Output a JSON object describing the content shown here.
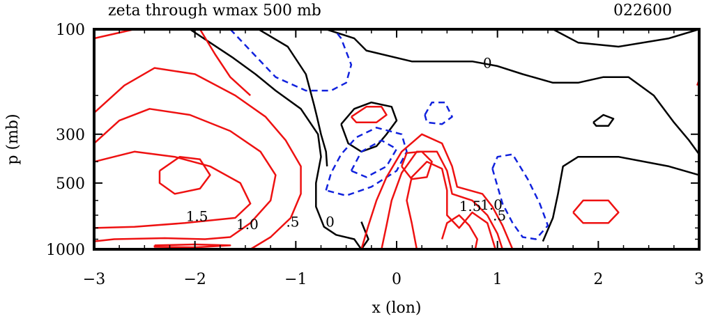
{
  "chart_data": {
    "type": "contour",
    "title": "zeta through wmax 500 mb",
    "timestamp": "022600",
    "xlabel": "x (lon)",
    "ylabel": "p (mb)",
    "xlim": [
      -3,
      3
    ],
    "ylim": [
      1000,
      100
    ],
    "y_scale": "log",
    "x_ticks": [
      "−3",
      "−2",
      "−1",
      "0",
      "1",
      "2",
      "3"
    ],
    "y_ticks": [
      "100",
      "300",
      "500",
      "1000"
    ],
    "grid": false,
    "colors": {
      "positive": "#ee1111",
      "negative": "#1122dd",
      "zero": "#000000"
    },
    "contour_labels": [
      {
        "text": "0",
        "x": 0.9,
        "p": 150
      },
      {
        "text": "1.5",
        "x": -1.98,
        "p": 745
      },
      {
        "text": "1.0",
        "x": -1.48,
        "p": 810
      },
      {
        "text": ".5",
        "x": -1.03,
        "p": 790
      },
      {
        "text": "0",
        "x": -0.66,
        "p": 790
      },
      {
        "text": "1.5",
        "x": 0.73,
        "p": 670
      },
      {
        "text": "1.0",
        "x": 0.94,
        "p": 660
      },
      {
        "text": ".5",
        "x": 1.02,
        "p": 740
      }
    ],
    "contours": [
      {
        "name": "zero-contour-left",
        "color": "zero",
        "points": [
          [
            -2.05,
            100
          ],
          [
            -1.85,
            115
          ],
          [
            -1.62,
            135
          ],
          [
            -1.4,
            160
          ],
          [
            -1.2,
            190
          ],
          [
            -0.95,
            230
          ],
          [
            -0.78,
            300
          ],
          [
            -0.75,
            380
          ],
          [
            -0.8,
            500
          ],
          [
            -0.8,
            640
          ],
          [
            -0.72,
            790
          ],
          [
            -0.6,
            860
          ],
          [
            -0.42,
            900
          ],
          [
            -0.35,
            1000
          ]
        ]
      },
      {
        "name": "zero-contour-top",
        "color": "zero",
        "points": [
          [
            -1.37,
            100
          ],
          [
            -1.08,
            120
          ],
          [
            -0.9,
            160
          ],
          [
            -0.82,
            220
          ],
          [
            -0.79,
            250
          ],
          [
            -0.75,
            300
          ],
          [
            -0.7,
            360
          ],
          [
            -0.69,
            420
          ]
        ]
      },
      {
        "name": "zero-contour-upper",
        "color": "zero",
        "points": [
          [
            -0.7,
            100
          ],
          [
            -0.42,
            110
          ],
          [
            -0.3,
            125
          ],
          [
            0.15,
            140
          ],
          [
            0.75,
            140
          ],
          [
            1.0,
            147
          ],
          [
            1.25,
            160
          ],
          [
            1.55,
            175
          ],
          [
            1.8,
            175
          ],
          [
            2.05,
            165
          ],
          [
            2.3,
            165
          ],
          [
            2.55,
            200
          ],
          [
            2.75,
            265
          ],
          [
            2.9,
            320
          ],
          [
            3.0,
            370
          ]
        ]
      },
      {
        "name": "zero-contour-top-right",
        "color": "zero",
        "points": [
          [
            1.55,
            100
          ],
          [
            1.8,
            115
          ],
          [
            2.2,
            120
          ],
          [
            2.7,
            110
          ],
          [
            3.0,
            100
          ]
        ]
      },
      {
        "name": "zero-contour-small-right",
        "color": "zero",
        "points": [
          [
            1.95,
            265
          ],
          [
            2.05,
            245
          ],
          [
            2.15,
            255
          ],
          [
            2.1,
            275
          ],
          [
            1.98,
            275
          ],
          [
            1.95,
            265
          ]
        ]
      },
      {
        "name": "zero-contour-center",
        "color": "zero",
        "points": [
          [
            -0.55,
            270
          ],
          [
            -0.42,
            230
          ],
          [
            -0.25,
            215
          ],
          [
            -0.05,
            225
          ],
          [
            0.0,
            260
          ],
          [
            -0.1,
            300
          ],
          [
            -0.2,
            340
          ],
          [
            -0.35,
            360
          ],
          [
            -0.48,
            330
          ],
          [
            -0.55,
            270
          ]
        ]
      },
      {
        "name": "zero-contour-lower-mid",
        "color": "zero",
        "points": [
          [
            -0.35,
            750
          ],
          [
            -0.28,
            900
          ],
          [
            -0.35,
            1000
          ]
        ]
      },
      {
        "name": "zero-contour-right",
        "color": "zero",
        "points": [
          [
            1.45,
            920
          ],
          [
            1.55,
            720
          ],
          [
            1.6,
            560
          ],
          [
            1.65,
            420
          ],
          [
            1.8,
            380
          ],
          [
            2.2,
            380
          ],
          [
            2.7,
            420
          ],
          [
            3.0,
            460
          ]
        ]
      },
      {
        "name": "neg-dashed-top",
        "color": "negative",
        "points": [
          [
            -1.65,
            100
          ],
          [
            -1.45,
            125
          ],
          [
            -1.2,
            165
          ],
          [
            -0.9,
            190
          ],
          [
            -0.65,
            190
          ],
          [
            -0.5,
            175
          ],
          [
            -0.45,
            145
          ],
          [
            -0.55,
            110
          ],
          [
            -0.62,
            100
          ]
        ]
      },
      {
        "name": "neg-dashed-center",
        "color": "negative",
        "points": [
          [
            -0.7,
            540
          ],
          [
            -0.65,
            450
          ],
          [
            -0.55,
            370
          ],
          [
            -0.4,
            310
          ],
          [
            -0.2,
            280
          ],
          [
            0.05,
            300
          ],
          [
            0.1,
            360
          ],
          [
            0.0,
            440
          ],
          [
            -0.25,
            520
          ],
          [
            -0.5,
            570
          ],
          [
            -0.7,
            540
          ]
        ]
      },
      {
        "name": "neg-dashed-center-inner",
        "color": "negative",
        "points": [
          [
            -0.45,
            440
          ],
          [
            -0.35,
            360
          ],
          [
            -0.15,
            320
          ],
          [
            0.0,
            350
          ],
          [
            -0.1,
            420
          ],
          [
            -0.3,
            470
          ],
          [
            -0.45,
            440
          ]
        ]
      },
      {
        "name": "neg-dashed-upper-right",
        "color": "negative",
        "points": [
          [
            0.28,
            245
          ],
          [
            0.35,
            215
          ],
          [
            0.48,
            215
          ],
          [
            0.55,
            250
          ],
          [
            0.45,
            270
          ],
          [
            0.3,
            265
          ],
          [
            0.28,
            245
          ]
        ]
      },
      {
        "name": "neg-dashed-right",
        "color": "negative",
        "points": [
          [
            0.95,
            430
          ],
          [
            1.0,
            380
          ],
          [
            1.15,
            370
          ],
          [
            1.3,
            480
          ],
          [
            1.42,
            620
          ],
          [
            1.5,
            780
          ],
          [
            1.38,
            900
          ],
          [
            1.25,
            880
          ],
          [
            1.15,
            760
          ],
          [
            1.05,
            620
          ],
          [
            0.95,
            430
          ]
        ]
      },
      {
        "name": "pos-contour-left-outer",
        "color": "positive",
        "points": [
          [
            -3.0,
            240
          ],
          [
            -2.7,
            180
          ],
          [
            -2.4,
            150
          ],
          [
            -2.0,
            160
          ],
          [
            -1.6,
            200
          ],
          [
            -1.3,
            250
          ],
          [
            -1.1,
            320
          ],
          [
            -0.95,
            420
          ],
          [
            -0.95,
            560
          ],
          [
            -1.05,
            720
          ],
          [
            -1.25,
            880
          ],
          [
            -1.45,
            1000
          ]
        ]
      },
      {
        "name": "pos-contour-left-mid",
        "color": "positive",
        "points": [
          [
            -3.0,
            330
          ],
          [
            -2.75,
            260
          ],
          [
            -2.45,
            230
          ],
          [
            -2.05,
            245
          ],
          [
            -1.65,
            290
          ],
          [
            -1.35,
            360
          ],
          [
            -1.2,
            460
          ],
          [
            -1.25,
            600
          ],
          [
            -1.45,
            760
          ],
          [
            -1.65,
            880
          ],
          [
            -1.9,
            900
          ],
          [
            -2.3,
            890
          ],
          [
            -2.8,
            900
          ],
          [
            -3.0,
            920
          ]
        ]
      },
      {
        "name": "pos-contour-left-inner",
        "color": "positive",
        "points": [
          [
            -3.0,
            400
          ],
          [
            -2.6,
            360
          ],
          [
            -2.2,
            380
          ],
          [
            -1.85,
            420
          ],
          [
            -1.55,
            500
          ],
          [
            -1.45,
            620
          ],
          [
            -1.6,
            720
          ],
          [
            -2.1,
            760
          ],
          [
            -2.6,
            790
          ],
          [
            -3.0,
            800
          ]
        ]
      },
      {
        "name": "pos-contour-left-core",
        "color": "positive",
        "points": [
          [
            -2.35,
            440
          ],
          [
            -2.15,
            380
          ],
          [
            -1.95,
            390
          ],
          [
            -1.85,
            460
          ],
          [
            -1.95,
            530
          ],
          [
            -2.2,
            560
          ],
          [
            -2.35,
            500
          ],
          [
            -2.35,
            440
          ]
        ]
      },
      {
        "name": "pos-contour-top-left",
        "color": "positive",
        "points": [
          [
            -3.0,
            110
          ],
          [
            -2.6,
            100
          ]
        ]
      },
      {
        "name": "pos-contour-left-top-arc",
        "color": "positive",
        "points": [
          [
            -1.95,
            100
          ],
          [
            -1.8,
            130
          ],
          [
            -1.65,
            165
          ],
          [
            -1.45,
            200
          ]
        ]
      },
      {
        "name": "pos-contour-bottom-left",
        "color": "positive",
        "points": [
          [
            -2.4,
            960
          ],
          [
            -2.0,
            950
          ],
          [
            -1.65,
            960
          ],
          [
            -2.0,
            980
          ],
          [
            -2.4,
            975
          ],
          [
            -2.4,
            960
          ]
        ]
      },
      {
        "name": "pos-contour-upper-center",
        "color": "positive",
        "points": [
          [
            -0.45,
            250
          ],
          [
            -0.3,
            225
          ],
          [
            -0.15,
            225
          ],
          [
            -0.1,
            245
          ],
          [
            -0.2,
            265
          ],
          [
            -0.4,
            265
          ],
          [
            -0.45,
            250
          ]
        ]
      },
      {
        "name": "pos-contour-center-outer",
        "color": "positive",
        "points": [
          [
            -0.35,
            1000
          ],
          [
            -0.28,
            780
          ],
          [
            -0.2,
            600
          ],
          [
            -0.1,
            470
          ],
          [
            0.05,
            360
          ],
          [
            0.25,
            300
          ],
          [
            0.45,
            330
          ],
          [
            0.55,
            420
          ],
          [
            0.6,
            520
          ],
          [
            0.85,
            560
          ],
          [
            0.95,
            640
          ],
          [
            1.05,
            780
          ],
          [
            1.15,
            1000
          ]
        ]
      },
      {
        "name": "pos-contour-center-2",
        "color": "positive",
        "points": [
          [
            -0.15,
            1000
          ],
          [
            -0.1,
            780
          ],
          [
            -0.05,
            600
          ],
          [
            0.05,
            450
          ],
          [
            0.2,
            360
          ],
          [
            0.4,
            360
          ],
          [
            0.5,
            440
          ],
          [
            0.55,
            560
          ],
          [
            0.75,
            600
          ],
          [
            0.9,
            700
          ],
          [
            1.0,
            850
          ],
          [
            1.05,
            1000
          ]
        ]
      },
      {
        "name": "pos-contour-center-3",
        "color": "positive",
        "points": [
          [
            0.2,
            1000
          ],
          [
            0.15,
            760
          ],
          [
            0.1,
            600
          ],
          [
            0.15,
            470
          ],
          [
            0.3,
            400
          ],
          [
            0.45,
            430
          ],
          [
            0.5,
            540
          ],
          [
            0.5,
            700
          ],
          [
            0.62,
            800
          ],
          [
            0.75,
            680
          ],
          [
            0.9,
            760
          ],
          [
            0.98,
            1000
          ]
        ]
      },
      {
        "name": "pos-contour-center-core",
        "color": "positive",
        "points": [
          [
            0.05,
            420
          ],
          [
            0.1,
            365
          ],
          [
            0.25,
            360
          ],
          [
            0.35,
            400
          ],
          [
            0.3,
            470
          ],
          [
            0.15,
            480
          ],
          [
            0.05,
            420
          ]
        ]
      },
      {
        "name": "pos-contour-low-right",
        "color": "positive",
        "points": [
          [
            0.45,
            900
          ],
          [
            0.5,
            760
          ],
          [
            0.62,
            700
          ],
          [
            0.72,
            780
          ],
          [
            0.8,
            900
          ],
          [
            0.78,
            1000
          ]
        ]
      },
      {
        "name": "pos-contour-right-small",
        "color": "positive",
        "points": [
          [
            1.75,
            680
          ],
          [
            1.85,
            600
          ],
          [
            2.1,
            600
          ],
          [
            2.2,
            680
          ],
          [
            2.1,
            760
          ],
          [
            1.85,
            760
          ],
          [
            1.75,
            680
          ]
        ]
      },
      {
        "name": "pos-contour-right-edge",
        "color": "positive",
        "points": [
          [
            2.98,
            180
          ],
          [
            3.0,
            170
          ]
        ]
      }
    ]
  }
}
